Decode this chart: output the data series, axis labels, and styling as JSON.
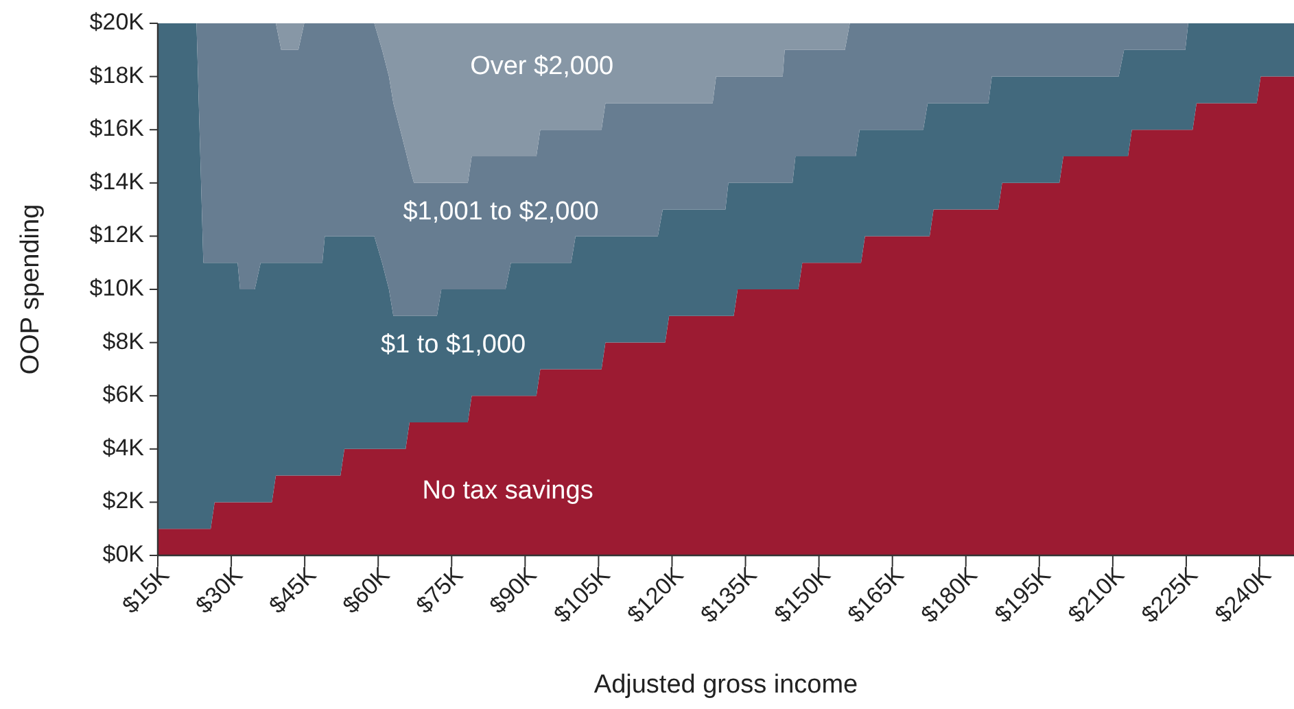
{
  "chart_data": {
    "type": "area",
    "stacked": true,
    "xlabel": "Adjusted gross income",
    "ylabel": "OOP spending",
    "xlim": [
      15,
      247
    ],
    "xticks": [
      {
        "value": 15,
        "label": "$15K"
      },
      {
        "value": 30,
        "label": "$30K"
      },
      {
        "value": 45,
        "label": "$45K"
      },
      {
        "value": 60,
        "label": "$60K"
      },
      {
        "value": 75,
        "label": "$75K"
      },
      {
        "value": 90,
        "label": "$90K"
      },
      {
        "value": 105,
        "label": "$105K"
      },
      {
        "value": 120,
        "label": "$120K"
      },
      {
        "value": 135,
        "label": "$135K"
      },
      {
        "value": 150,
        "label": "$150K"
      },
      {
        "value": 165,
        "label": "$165K"
      },
      {
        "value": 180,
        "label": "$180K"
      },
      {
        "value": 195,
        "label": "$195K"
      },
      {
        "value": 210,
        "label": "$210K"
      },
      {
        "value": 225,
        "label": "$225K"
      },
      {
        "value": 240,
        "label": "$240K"
      }
    ],
    "ylim": [
      0,
      20
    ],
    "yticks": [
      {
        "value": 0,
        "label": "$0K"
      },
      {
        "value": 2,
        "label": "$2K"
      },
      {
        "value": 4,
        "label": "$4K"
      },
      {
        "value": 6,
        "label": "$6K"
      },
      {
        "value": 8,
        "label": "$8K"
      },
      {
        "value": 10,
        "label": "$10K"
      },
      {
        "value": 12,
        "label": "$12K"
      },
      {
        "value": 14,
        "label": "$14K"
      },
      {
        "value": 16,
        "label": "$16K"
      },
      {
        "value": 18,
        "label": "$18K"
      },
      {
        "value": 20,
        "label": "$20K"
      }
    ],
    "x": [
      15,
      22.9,
      24.3,
      25.8,
      26.6,
      31.3,
      31.8,
      34.8,
      36,
      38.3,
      39.1,
      40.2,
      43.7,
      44.9,
      48.6,
      49.1,
      52.3,
      53.1,
      59.2,
      60.8,
      62.2,
      63.1,
      64.5,
      65.6,
      66.4,
      67.3,
      72,
      72.9,
      78.3,
      79.1,
      86,
      87.1,
      92.3,
      93.1,
      99.4,
      100.3,
      105.6,
      106.4,
      117.1,
      118.1,
      118.6,
      119.4,
      128.3,
      129,
      130.9,
      131.5,
      132.6,
      133.4,
      142.6,
      143,
      144.6,
      145.2,
      145.8,
      146.6,
      155.3,
      156.3,
      157.5,
      158.3,
      158.6,
      159.4,
      171.3,
      172.2,
      172.6,
      173.4,
      184.6,
      185.3,
      186.6,
      187.4,
      199.1,
      199.9,
      211.2,
      212.3,
      213.1,
      213.9,
      224.8,
      225.4,
      226.3,
      227.1,
      239.4,
      240.2,
      247
    ],
    "series": [
      {
        "name": "No tax savings",
        "color": "#9c1b32",
        "values": [
          1,
          1,
          1,
          1,
          2,
          2,
          2,
          2,
          2,
          2,
          3,
          3,
          3,
          3,
          3,
          3,
          3,
          4,
          4,
          4,
          4,
          4,
          4,
          4,
          5,
          5,
          5,
          5,
          5,
          6,
          6,
          6,
          6,
          7,
          7,
          7,
          7,
          8,
          8,
          8,
          8,
          9,
          9,
          9,
          9,
          9,
          9,
          10,
          10,
          10,
          10,
          10,
          10,
          11,
          11,
          11,
          11,
          11,
          11,
          12,
          12,
          12,
          12,
          13,
          13,
          13,
          13,
          14,
          14,
          15,
          15,
          15,
          15,
          16,
          16,
          16,
          16,
          17,
          17,
          18,
          18
        ]
      },
      {
        "name": "$1 to $1,000",
        "color": "#42697d",
        "values": [
          19,
          19,
          10,
          10,
          9,
          9,
          8,
          8,
          9,
          9,
          8,
          8,
          8,
          8,
          8,
          9,
          9,
          8,
          8,
          7,
          6,
          5,
          5,
          5,
          4,
          4,
          4,
          5,
          5,
          4,
          4,
          5,
          5,
          4,
          4,
          5,
          5,
          4,
          4,
          5,
          5,
          4,
          4,
          4,
          4,
          5,
          5,
          4,
          4,
          4,
          4,
          5,
          5,
          4,
          4,
          4,
          4,
          5,
          5,
          4,
          4,
          5,
          5,
          4,
          4,
          5,
          5,
          4,
          4,
          3,
          3,
          4,
          4,
          3,
          3,
          4,
          4,
          3,
          3,
          2,
          2
        ]
      },
      {
        "name": "$1,001 to $2,000",
        "color": "#677d91",
        "values": [
          0,
          0,
          9,
          9,
          9,
          9,
          10,
          10,
          9,
          9,
          9,
          8,
          8,
          9,
          9,
          8,
          8,
          8,
          8,
          8,
          8,
          8,
          7,
          6.2,
          5.6,
          5,
          5,
          4,
          4,
          5,
          5,
          4,
          4,
          5,
          5,
          4,
          4,
          5,
          5,
          4,
          4,
          4,
          4,
          5,
          5,
          4,
          4,
          4,
          4,
          5,
          5,
          4,
          4,
          4,
          4,
          5,
          5,
          4,
          4,
          4,
          4,
          3,
          3,
          3,
          3,
          2,
          2,
          2,
          2,
          2,
          2,
          1,
          1,
          1,
          1,
          0,
          0,
          0,
          0,
          0,
          0
        ]
      },
      {
        "name": "Over $2,000",
        "color": "#8797a6",
        "values": [
          0,
          0,
          0,
          0,
          0,
          0,
          0,
          0,
          0,
          0,
          0,
          1,
          1,
          0,
          0,
          0,
          0,
          0,
          0,
          1,
          2,
          3,
          4,
          4.8,
          5.4,
          6,
          6,
          6,
          6,
          5,
          5,
          5,
          5,
          4,
          4,
          4,
          4,
          3,
          3,
          3,
          3,
          3,
          3,
          2,
          2,
          2,
          2,
          2,
          2,
          1,
          1,
          1,
          1,
          1,
          1,
          0,
          0,
          0,
          0,
          0,
          0,
          0,
          0,
          0,
          0,
          0,
          0,
          0,
          0,
          0,
          0,
          0,
          0,
          0,
          0,
          0,
          0,
          0,
          0,
          0,
          0
        ]
      }
    ]
  }
}
